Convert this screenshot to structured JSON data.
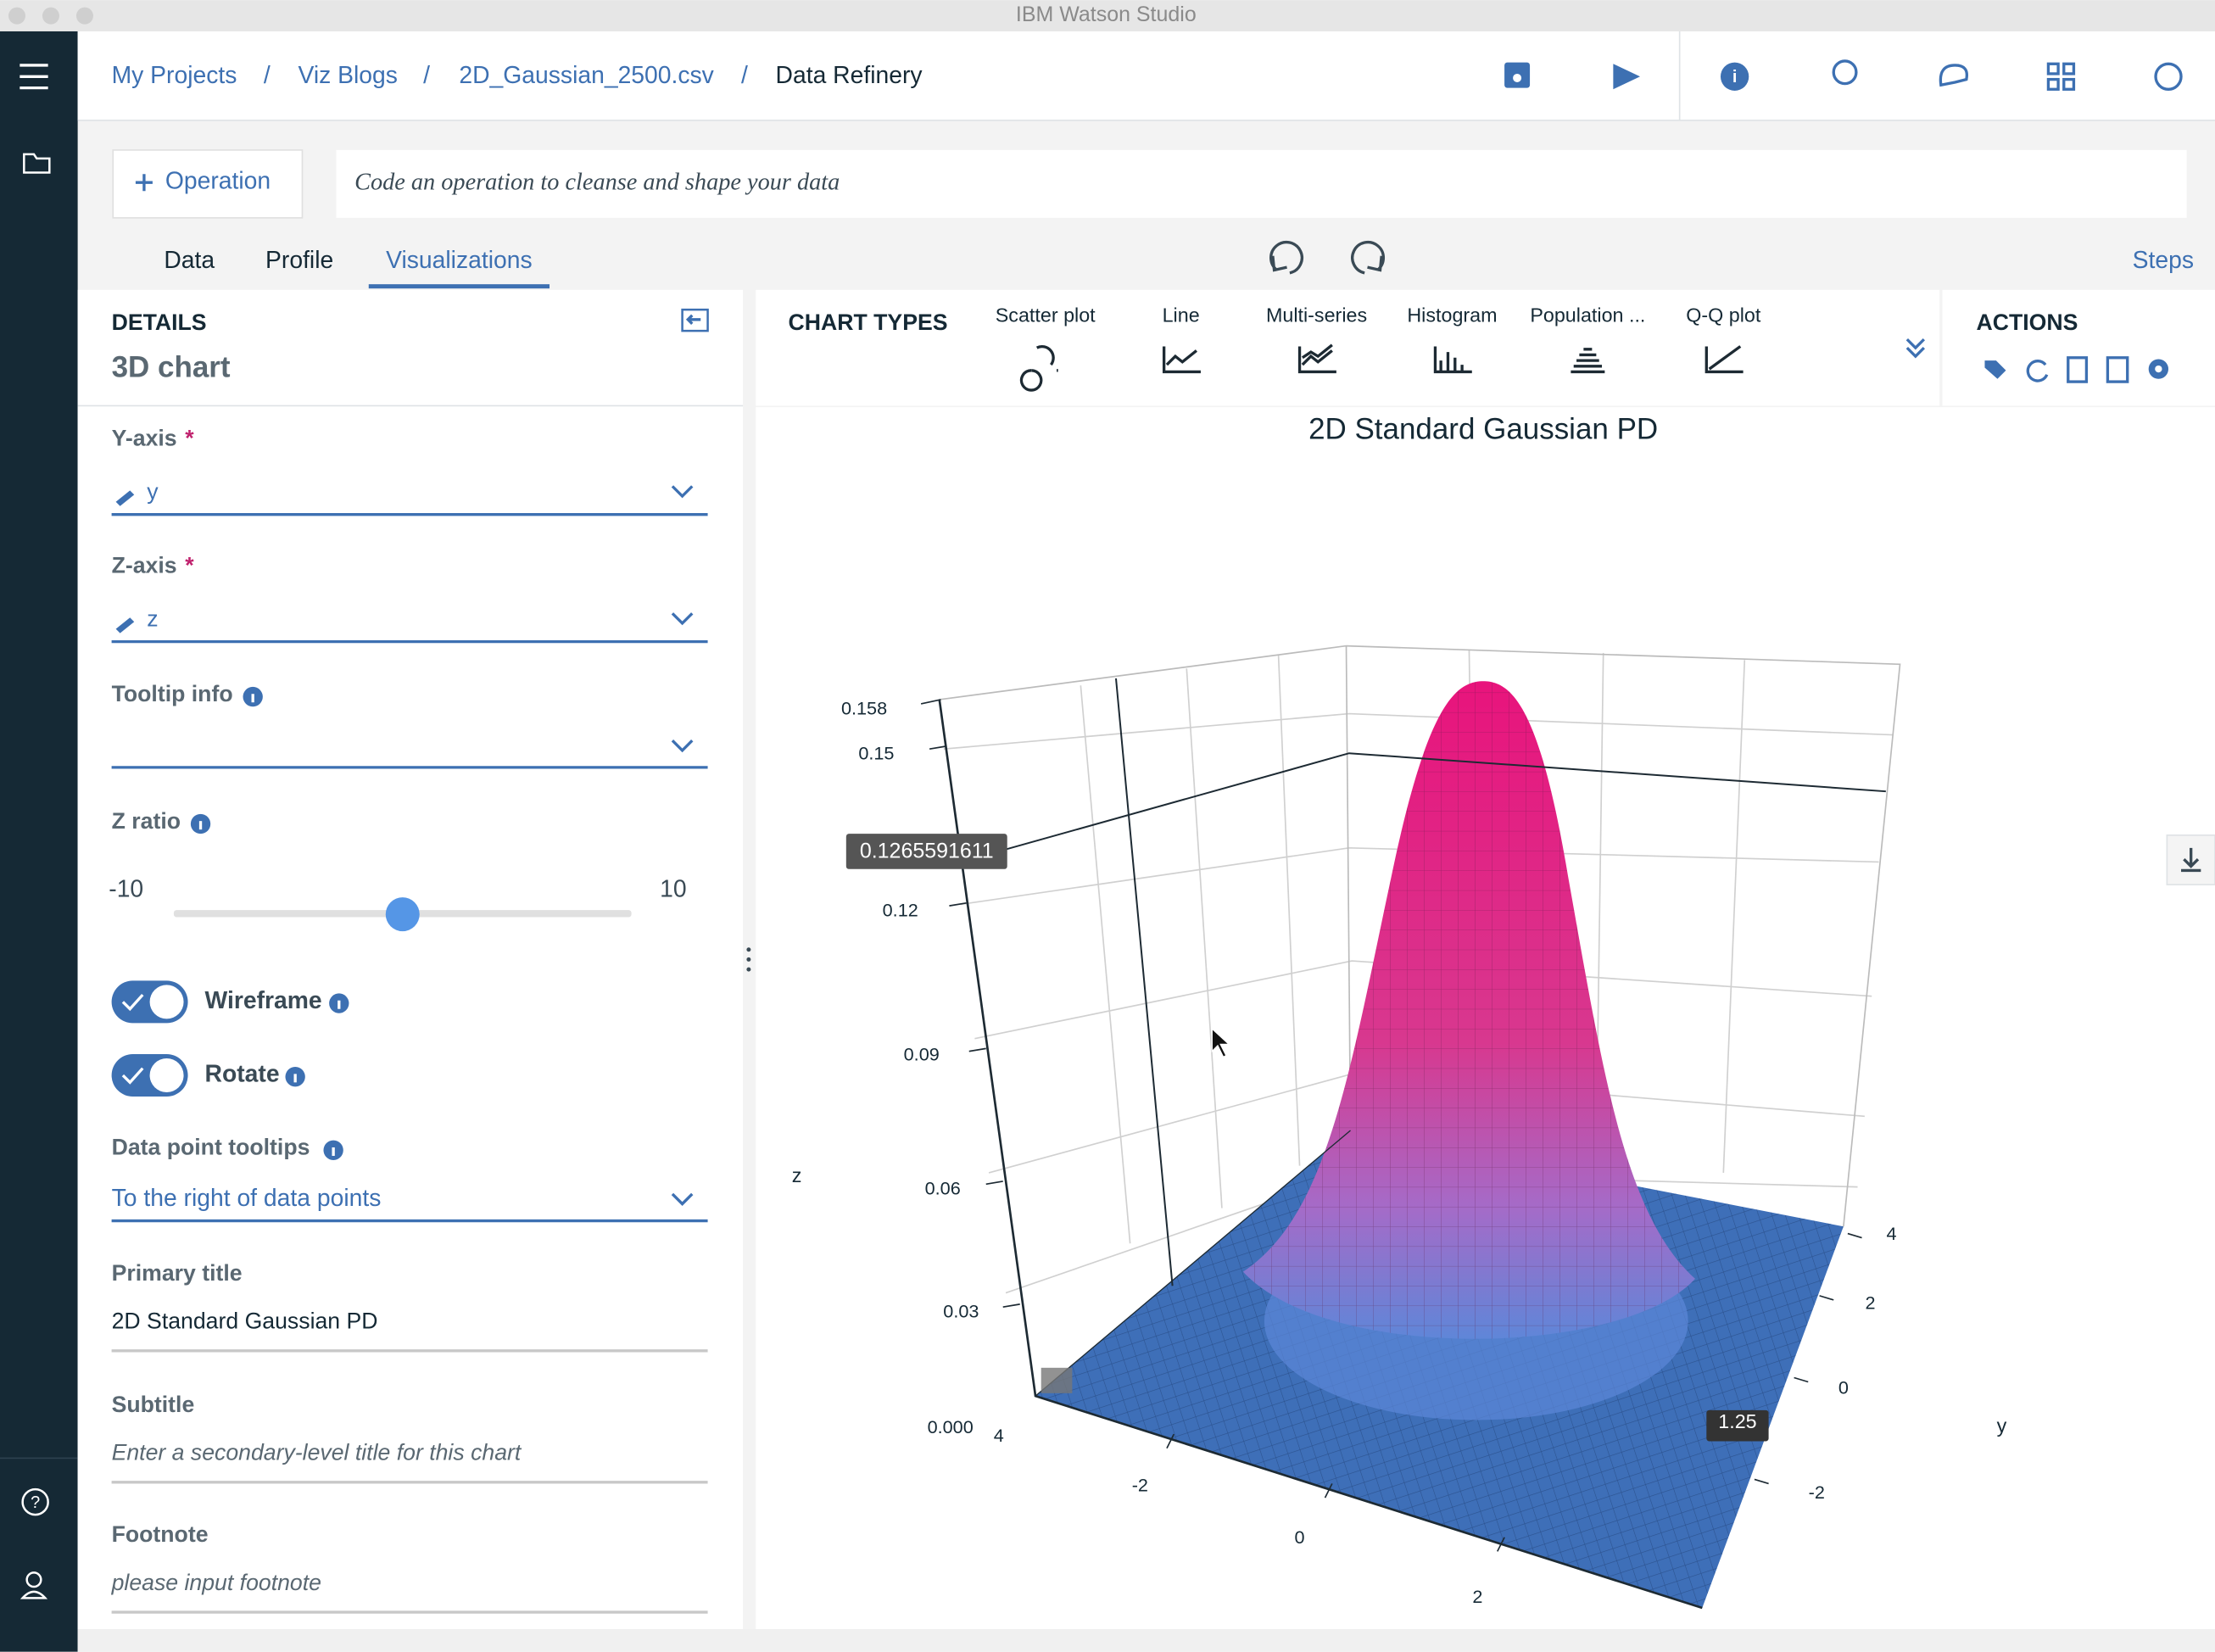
{
  "window_title": "IBM Watson Studio",
  "breadcrumb": [
    "My Projects",
    "Viz Blogs",
    "2D_Gaussian_2500.csv",
    "Data Refinery"
  ],
  "breadcrumb_separator": "/",
  "operation_button": "Operation",
  "code_placeholder": "Code an operation to cleanse and shape your data",
  "tabs": [
    "Data",
    "Profile",
    "Visualizations"
  ],
  "steps": "Steps",
  "details": {
    "heading": "DETAILS",
    "chart_name": "3D chart",
    "y_axis": {
      "label": "Y-axis",
      "required": "*",
      "value": "y"
    },
    "z_axis": {
      "label": "Z-axis",
      "required": "*",
      "value": "z"
    },
    "tooltip_info": {
      "label": "Tooltip info"
    },
    "z_ratio": {
      "label": "Z ratio",
      "min": "-10",
      "max": "10"
    },
    "wireframe": "Wireframe",
    "rotate": "Rotate",
    "data_point_tooltips": {
      "label": "Data point tooltips",
      "value": "To the right of data points"
    },
    "primary_title": {
      "label": "Primary title",
      "value": "2D Standard Gaussian PD"
    },
    "subtitle": {
      "label": "Subtitle",
      "placeholder": "Enter a secondary-level title for this chart"
    },
    "footnote": {
      "label": "Footnote",
      "placeholder": "please input footnote"
    }
  },
  "chart_types": {
    "heading": "CHART TYPES",
    "items": [
      "Scatter plot",
      "Line",
      "Multi-series",
      "Histogram",
      "Population ...",
      "Q-Q plot"
    ]
  },
  "actions": {
    "heading": "ACTIONS"
  },
  "chart": {
    "title": "2D Standard Gaussian PD",
    "z_label": "z",
    "y_label": "y",
    "z_ticks": [
      "0.158",
      "0.15",
      "0.12",
      "0.09",
      "0.06",
      "0.03",
      "0.000"
    ],
    "x_ticks": [
      "4",
      "-2",
      "0",
      "2"
    ],
    "y_ticks": [
      "4",
      "2",
      "0",
      "-2"
    ],
    "hover_z": "0.1265591611",
    "hover_y": "1.25"
  }
}
